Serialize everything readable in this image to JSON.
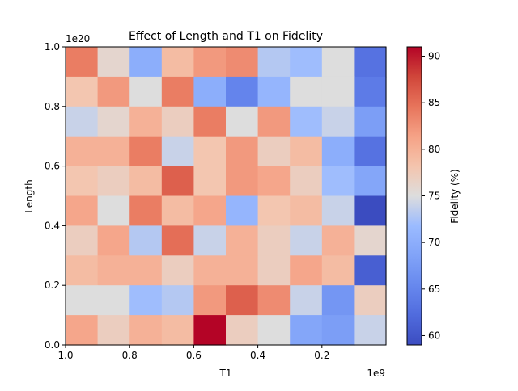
{
  "chart_data": {
    "type": "heatmap",
    "title": "Effect of Length and T1 on Fidelity",
    "xlabel": "T1",
    "ylabel": "Length",
    "x_offset_label": "1e9",
    "y_offset_label": "1e20",
    "xlim": [
      1.0,
      0.0
    ],
    "ylim": [
      0.0,
      1.0
    ],
    "x_ticks": [
      1.0,
      0.8,
      0.6,
      0.4,
      0.2
    ],
    "x_tick_labels": [
      "1.0",
      "0.8",
      "0.6",
      "0.4",
      "0.2"
    ],
    "y_ticks": [
      0.0,
      0.2,
      0.4,
      0.6,
      0.8,
      1.0
    ],
    "y_tick_labels": [
      "0.0",
      "0.2",
      "0.4",
      "0.6",
      "0.8",
      "1.0"
    ],
    "colorbar": {
      "label": "Fidelity (%)",
      "range": [
        59,
        91
      ],
      "ticks": [
        60,
        65,
        70,
        75,
        80,
        85,
        90
      ],
      "tick_labels": [
        "60",
        "65",
        "70",
        "75",
        "80",
        "85",
        "90"
      ],
      "colormap": "coolwarm"
    },
    "grid": false,
    "rows_top_to_bottom": [
      [
        84,
        76,
        70,
        79,
        82,
        83,
        73,
        72,
        75,
        63
      ],
      [
        78,
        82,
        75,
        84,
        70,
        65,
        71,
        75,
        75,
        64
      ],
      [
        74,
        76,
        80,
        77,
        84,
        75,
        82,
        72,
        74,
        68
      ],
      [
        80,
        80,
        84,
        74,
        78,
        82,
        77,
        79,
        70,
        63
      ],
      [
        78,
        77,
        79,
        86,
        78,
        82,
        81,
        77,
        72,
        69
      ],
      [
        81,
        75,
        84,
        79,
        81,
        71,
        78,
        79,
        74,
        59
      ],
      [
        77,
        81,
        73,
        85,
        74,
        80,
        77,
        74,
        80,
        76
      ],
      [
        79,
        80,
        80,
        77,
        80,
        80,
        77,
        81,
        79,
        61
      ],
      [
        75,
        75,
        72,
        73,
        82,
        86,
        83,
        74,
        67,
        77
      ],
      [
        81,
        77,
        80,
        79,
        91,
        77,
        75,
        69,
        68,
        74
      ]
    ]
  }
}
